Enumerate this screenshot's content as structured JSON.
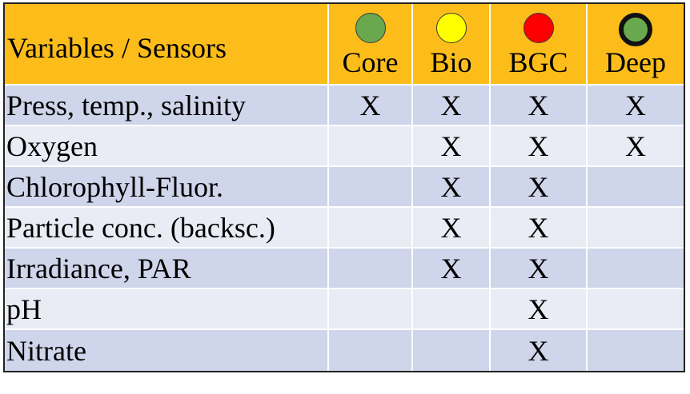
{
  "header": {
    "first": "Variables / Sensors",
    "columns": [
      {
        "label": "Core",
        "color": "#6aa84f",
        "icon": "green-dot-icon"
      },
      {
        "label": "Bio",
        "color": "#ffff00",
        "icon": "yellow-dot-icon"
      },
      {
        "label": "BGC",
        "color": "#ff0000",
        "icon": "red-dot-icon"
      },
      {
        "label": "Deep",
        "color": "#6aa84f",
        "icon": "green-dot-bold-ring-icon"
      }
    ]
  },
  "rows": [
    {
      "label": "Press, temp., salinity",
      "cells": [
        "X",
        "X",
        "X",
        "X"
      ]
    },
    {
      "label": "Oxygen",
      "cells": [
        "",
        "X",
        "X",
        "X"
      ]
    },
    {
      "label": "Chlorophyll-Fluor.",
      "cells": [
        "",
        "X",
        "X",
        ""
      ]
    },
    {
      "label": "Particle conc. (backsc.)",
      "cells": [
        "",
        "X",
        "X",
        ""
      ]
    },
    {
      "label": "Irradiance, PAR",
      "cells": [
        "",
        "X",
        "X",
        ""
      ]
    },
    {
      "label": "pH",
      "cells": [
        "",
        "",
        "X",
        ""
      ]
    },
    {
      "label": "Nitrate",
      "cells": [
        "",
        "",
        "X",
        ""
      ]
    }
  ],
  "colors": {
    "header_bg": "#fcbd1b",
    "row_odd": "#cfd5ea",
    "row_even": "#e9ebf5"
  }
}
